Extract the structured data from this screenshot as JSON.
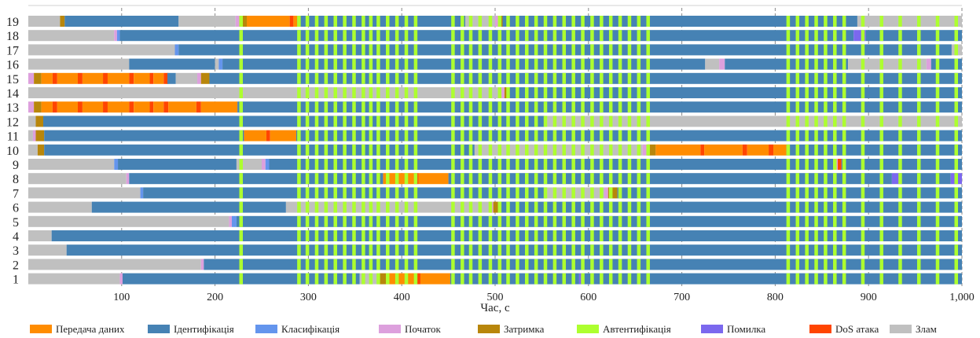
{
  "chart_data": {
    "type": "bar",
    "orientation": "horizontal-timeline",
    "xlabel": "Час, с",
    "xlim": [
      0,
      1000
    ],
    "x_ticks": [
      "100",
      "200",
      "300",
      "400",
      "500",
      "600",
      "700",
      "800",
      "900",
      "1,000"
    ],
    "grid": "vertical dashed",
    "legend_position": "bottom",
    "categories": [
      "1",
      "2",
      "3",
      "4",
      "5",
      "6",
      "7",
      "8",
      "9",
      "10",
      "11",
      "12",
      "13",
      "14",
      "15",
      "16",
      "17",
      "18",
      "19"
    ],
    "states": [
      {
        "key": "T",
        "name": "Передача даних",
        "color": "#ff8c00"
      },
      {
        "key": "I",
        "name": "Ідентифікація",
        "color": "#4682b4"
      },
      {
        "key": "C",
        "name": "Класифікація",
        "color": "#6495ed"
      },
      {
        "key": "S",
        "name": "Початок",
        "color": "#dda0dd"
      },
      {
        "key": "Z",
        "name": "Затримка",
        "color": "#b8860b"
      },
      {
        "key": "A",
        "name": "Автентифікація",
        "color": "#adff2f"
      },
      {
        "key": "E",
        "name": "Помилка",
        "color": "#7b68ee"
      },
      {
        "key": "D",
        "name": "DoS атака",
        "color": "#ff4500"
      },
      {
        "key": "H",
        "name": "Злам",
        "color": "#c0c0c0"
      }
    ],
    "auth_times": [
      226,
      288,
      297,
      307,
      317,
      327,
      337,
      347,
      357,
      365,
      373,
      383,
      393,
      403,
      413,
      453,
      463,
      472,
      482,
      493,
      503,
      512,
      522,
      532,
      542,
      552,
      562,
      572,
      582,
      592,
      602,
      612,
      622,
      632,
      642,
      652,
      662,
      812,
      822,
      832,
      842,
      852,
      862,
      872,
      892,
      912,
      932,
      952,
      972,
      992
    ],
    "rows": [
      {
        "id": "1",
        "segments": [
          [
            "H",
            0,
            98
          ],
          [
            "S",
            98,
            101
          ],
          [
            "I",
            101,
            355
          ],
          [
            "H",
            355,
            376
          ],
          [
            "Z",
            376,
            385
          ],
          [
            "T",
            385,
            415
          ],
          [
            "D",
            415,
            420
          ],
          [
            "T",
            420,
            452
          ],
          [
            "I",
            452,
            590
          ],
          [
            "E",
            590,
            594
          ],
          [
            "I",
            594,
            1000
          ]
        ]
      },
      {
        "id": "2",
        "segments": [
          [
            "H",
            0,
            185
          ],
          [
            "S",
            185,
            188
          ],
          [
            "I",
            188,
            1000
          ]
        ]
      },
      {
        "id": "3",
        "segments": [
          [
            "H",
            0,
            41
          ],
          [
            "I",
            41,
            1000
          ]
        ]
      },
      {
        "id": "4",
        "segments": [
          [
            "H",
            0,
            25
          ],
          [
            "I",
            25,
            1000
          ]
        ]
      },
      {
        "id": "5",
        "segments": [
          [
            "H",
            0,
            215
          ],
          [
            "S",
            215,
            218
          ],
          [
            "C",
            218,
            223
          ],
          [
            "I",
            223,
            1000
          ]
        ]
      },
      {
        "id": "6",
        "segments": [
          [
            "H",
            0,
            68
          ],
          [
            "I",
            68,
            276
          ],
          [
            "H",
            276,
            495
          ],
          [
            "S",
            495,
            498
          ],
          [
            "Z",
            498,
            503
          ],
          [
            "I",
            503,
            1000
          ]
        ]
      },
      {
        "id": "7",
        "segments": [
          [
            "H",
            0,
            120
          ],
          [
            "C",
            120,
            123
          ],
          [
            "I",
            123,
            555
          ],
          [
            "H",
            555,
            617
          ],
          [
            "S",
            617,
            621
          ],
          [
            "Z",
            621,
            631
          ],
          [
            "I",
            631,
            1000
          ]
        ]
      },
      {
        "id": "8",
        "segments": [
          [
            "H",
            0,
            105
          ],
          [
            "S",
            105,
            108
          ],
          [
            "I",
            108,
            380
          ],
          [
            "T",
            380,
            413
          ],
          [
            "D",
            413,
            418
          ],
          [
            "T",
            418,
            450
          ],
          [
            "I",
            450,
            925
          ],
          [
            "E",
            925,
            935
          ],
          [
            "I",
            935,
            988
          ],
          [
            "E",
            988,
            1000
          ]
        ]
      },
      {
        "id": "9",
        "segments": [
          [
            "H",
            0,
            92
          ],
          [
            "C",
            92,
            96
          ],
          [
            "I",
            96,
            223
          ],
          [
            "H",
            223,
            250
          ],
          [
            "S",
            250,
            254
          ],
          [
            "C",
            254,
            258
          ],
          [
            "I",
            258,
            862
          ],
          [
            "S",
            862,
            867
          ],
          [
            "D",
            867,
            871
          ],
          [
            "I",
            871,
            1000
          ]
        ]
      },
      {
        "id": "10",
        "segments": [
          [
            "H",
            0,
            10
          ],
          [
            "Z",
            10,
            17
          ],
          [
            "I",
            17,
            478
          ],
          [
            "H",
            478,
            658
          ],
          [
            "S",
            658,
            663
          ],
          [
            "Z",
            663,
            672
          ],
          [
            "T",
            672,
            720
          ],
          [
            "D",
            720,
            724
          ],
          [
            "T",
            724,
            765
          ],
          [
            "D",
            765,
            770
          ],
          [
            "T",
            770,
            793
          ],
          [
            "D",
            793,
            798
          ],
          [
            "T",
            798,
            812
          ],
          [
            "I",
            812,
            1000
          ]
        ]
      },
      {
        "id": "11",
        "segments": [
          [
            "H",
            0,
            5
          ],
          [
            "S",
            5,
            8
          ],
          [
            "Z",
            8,
            17
          ],
          [
            "I",
            17,
            231
          ],
          [
            "T",
            231,
            255
          ],
          [
            "D",
            255,
            259
          ],
          [
            "T",
            259,
            287
          ],
          [
            "I",
            287,
            1000
          ]
        ]
      },
      {
        "id": "12",
        "segments": [
          [
            "H",
            0,
            8
          ],
          [
            "Z",
            8,
            16
          ],
          [
            "I",
            16,
            553
          ],
          [
            "H",
            553,
            1000
          ]
        ]
      },
      {
        "id": "13",
        "segments": [
          [
            "S",
            0,
            6
          ],
          [
            "Z",
            6,
            14
          ],
          [
            "T",
            14,
            26
          ],
          [
            "D",
            26,
            31
          ],
          [
            "T",
            31,
            53
          ],
          [
            "D",
            53,
            58
          ],
          [
            "T",
            58,
            80
          ],
          [
            "D",
            80,
            85
          ],
          [
            "T",
            85,
            108
          ],
          [
            "D",
            108,
            113
          ],
          [
            "T",
            113,
            130
          ],
          [
            "D",
            130,
            134
          ],
          [
            "T",
            134,
            145
          ],
          [
            "D",
            145,
            150
          ],
          [
            "T",
            150,
            180
          ],
          [
            "D",
            180,
            185
          ],
          [
            "T",
            185,
            224
          ],
          [
            "I",
            224,
            1000
          ]
        ]
      },
      {
        "id": "14",
        "segments": [
          [
            "H",
            0,
            506
          ],
          [
            "S",
            506,
            510
          ],
          [
            "Z",
            510,
            514
          ],
          [
            "I",
            514,
            1000
          ]
        ]
      },
      {
        "id": "15",
        "segments": [
          [
            "S",
            0,
            6
          ],
          [
            "Z",
            6,
            14
          ],
          [
            "T",
            14,
            26
          ],
          [
            "D",
            26,
            31
          ],
          [
            "T",
            31,
            53
          ],
          [
            "D",
            53,
            58
          ],
          [
            "T",
            58,
            80
          ],
          [
            "D",
            80,
            85
          ],
          [
            "T",
            85,
            108
          ],
          [
            "D",
            108,
            113
          ],
          [
            "T",
            113,
            130
          ],
          [
            "D",
            130,
            134
          ],
          [
            "T",
            134,
            145
          ],
          [
            "D",
            145,
            150
          ],
          [
            "T",
            150,
            149
          ],
          [
            "I",
            149,
            158
          ],
          [
            "H",
            158,
            181
          ],
          [
            "S",
            181,
            185
          ],
          [
            "Z",
            185,
            194
          ],
          [
            "I",
            194,
            1000
          ]
        ]
      },
      {
        "id": "16",
        "segments": [
          [
            "H",
            0,
            108
          ],
          [
            "I",
            108,
            200
          ],
          [
            "H",
            200,
            204
          ],
          [
            "C",
            204,
            208
          ],
          [
            "I",
            208,
            725
          ],
          [
            "H",
            725,
            740
          ],
          [
            "S",
            740,
            746
          ],
          [
            "I",
            746,
            878
          ],
          [
            "H",
            878,
            962
          ],
          [
            "S",
            962,
            967
          ],
          [
            "I",
            967,
            1000
          ]
        ]
      },
      {
        "id": "17",
        "segments": [
          [
            "H",
            0,
            157
          ],
          [
            "C",
            157,
            161
          ],
          [
            "I",
            161,
            989
          ],
          [
            "H",
            989,
            1000
          ]
        ]
      },
      {
        "id": "18",
        "segments": [
          [
            "H",
            0,
            92
          ],
          [
            "S",
            92,
            95
          ],
          [
            "C",
            95,
            98
          ],
          [
            "I",
            98,
            884
          ],
          [
            "E",
            884,
            897
          ],
          [
            "I",
            897,
            1000
          ]
        ]
      },
      {
        "id": "19",
        "segments": [
          [
            "H",
            0,
            34
          ],
          [
            "Z",
            34,
            39
          ],
          [
            "I",
            39,
            161
          ],
          [
            "H",
            161,
            222
          ],
          [
            "S",
            222,
            226
          ],
          [
            "Z",
            226,
            234
          ],
          [
            "T",
            234,
            280
          ],
          [
            "D",
            280,
            284
          ],
          [
            "T",
            284,
            288
          ],
          [
            "I",
            288,
            468
          ],
          [
            "H",
            468,
            500
          ],
          [
            "S",
            500,
            504
          ],
          [
            "Z",
            504,
            508
          ],
          [
            "I",
            508,
            888
          ],
          [
            "H",
            888,
            1000
          ]
        ]
      }
    ]
  }
}
